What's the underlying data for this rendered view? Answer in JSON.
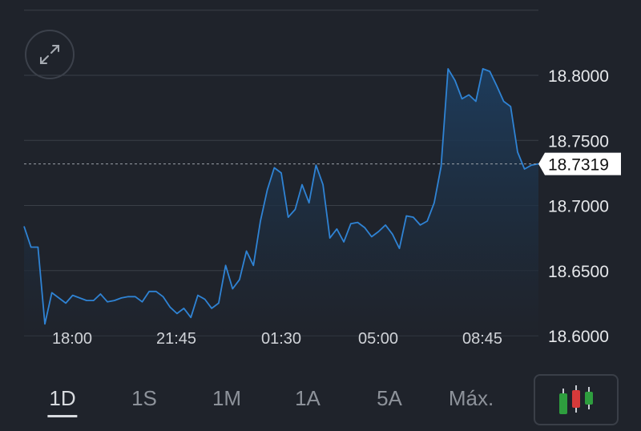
{
  "chart_data": {
    "type": "line",
    "x_ticks": [
      "18:00",
      "21:45",
      "01:30",
      "05:00",
      "08:45"
    ],
    "y_ticks": [
      "18.8000",
      "18.7500",
      "18.7000",
      "18.6500",
      "18.6000"
    ],
    "ylim": [
      18.6,
      18.8
    ],
    "current_value": "18.7319",
    "grid": true,
    "values": [
      18.684,
      18.668,
      18.668,
      18.609,
      18.633,
      18.629,
      18.625,
      18.631,
      18.629,
      18.627,
      18.627,
      18.632,
      18.626,
      18.627,
      18.629,
      18.63,
      18.63,
      18.626,
      18.634,
      18.634,
      18.63,
      18.622,
      18.617,
      18.621,
      18.614,
      18.631,
      18.628,
      18.621,
      18.625,
      18.654,
      18.636,
      18.643,
      18.665,
      18.654,
      18.688,
      18.712,
      18.729,
      18.725,
      18.691,
      18.697,
      18.716,
      18.702,
      18.731,
      18.716,
      18.675,
      18.682,
      18.672,
      18.686,
      18.687,
      18.683,
      18.676,
      18.68,
      18.685,
      18.678,
      18.667,
      18.692,
      18.691,
      18.685,
      18.688,
      18.702,
      18.73,
      18.805,
      18.796,
      18.782,
      18.785,
      18.78,
      18.805,
      18.803,
      18.792,
      18.78,
      18.776,
      18.741,
      18.728,
      18.731,
      18.732
    ],
    "colors": {
      "line": "#2f83d4",
      "fill_top": "#1d3d5e",
      "fill_bottom": "#1f232b",
      "marker_bg": "#ffffff"
    }
  },
  "toolbar": {
    "expand_icon": "expand-arrows-icon",
    "ranges": [
      {
        "label": "1D",
        "active": true
      },
      {
        "label": "1S",
        "active": false
      },
      {
        "label": "1M",
        "active": false
      },
      {
        "label": "1A",
        "active": false
      },
      {
        "label": "5A",
        "active": false
      },
      {
        "label": "Máx.",
        "active": false
      }
    ],
    "chart_type_icon": "candlestick-icon",
    "candle_colors": [
      "#2e9e3e",
      "#d63a3a",
      "#2e9e3e"
    ]
  }
}
